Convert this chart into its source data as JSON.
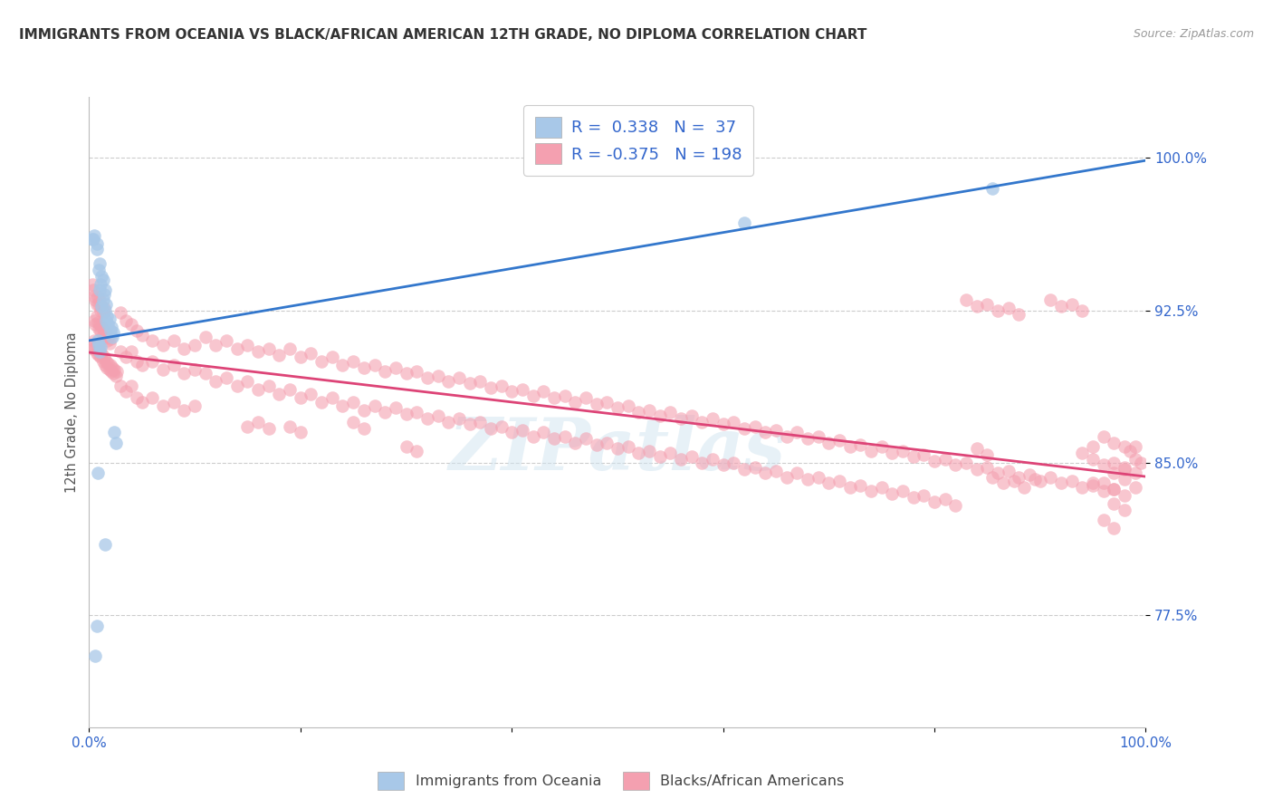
{
  "title": "IMMIGRANTS FROM OCEANIA VS BLACK/AFRICAN AMERICAN 12TH GRADE, NO DIPLOMA CORRELATION CHART",
  "source": "Source: ZipAtlas.com",
  "ylabel": "12th Grade, No Diploma",
  "xlim": [
    0.0,
    1.0
  ],
  "ylim": [
    0.72,
    1.03
  ],
  "yticks": [
    0.775,
    0.85,
    0.925,
    1.0
  ],
  "ytick_labels": [
    "77.5%",
    "85.0%",
    "92.5%",
    "100.0%"
  ],
  "xticks": [
    0.0,
    0.2,
    0.4,
    0.6,
    0.8,
    1.0
  ],
  "xtick_labels": [
    "0.0%",
    "",
    "",
    "",
    "",
    "100.0%"
  ],
  "blue_R": 0.338,
  "blue_N": 37,
  "pink_R": -0.375,
  "pink_N": 198,
  "blue_color": "#a8c8e8",
  "pink_color": "#f4a0b0",
  "blue_line_color": "#3377cc",
  "pink_line_color": "#dd4477",
  "legend_label_blue": "Immigrants from Oceania",
  "legend_label_pink": "Blacks/African Americans",
  "watermark": "ZIPatlas",
  "background_color": "#ffffff",
  "axis_label_color": "#3366cc",
  "title_color": "#333333",
  "blue_points": [
    [
      0.003,
      0.96
    ],
    [
      0.004,
      0.96
    ],
    [
      0.005,
      0.962
    ],
    [
      0.007,
      0.958
    ],
    [
      0.007,
      0.955
    ],
    [
      0.009,
      0.945
    ],
    [
      0.01,
      0.948
    ],
    [
      0.01,
      0.935
    ],
    [
      0.011,
      0.938
    ],
    [
      0.012,
      0.942
    ],
    [
      0.013,
      0.94
    ],
    [
      0.014,
      0.933
    ],
    [
      0.015,
      0.935
    ],
    [
      0.012,
      0.927
    ],
    [
      0.013,
      0.93
    ],
    [
      0.015,
      0.925
    ],
    [
      0.016,
      0.928
    ],
    [
      0.016,
      0.92
    ],
    [
      0.017,
      0.922
    ],
    [
      0.018,
      0.918
    ],
    [
      0.019,
      0.921
    ],
    [
      0.02,
      0.915
    ],
    [
      0.021,
      0.917
    ],
    [
      0.022,
      0.912
    ],
    [
      0.023,
      0.914
    ],
    [
      0.008,
      0.91
    ],
    [
      0.009,
      0.908
    ],
    [
      0.01,
      0.905
    ],
    [
      0.011,
      0.907
    ],
    [
      0.024,
      0.865
    ],
    [
      0.025,
      0.86
    ],
    [
      0.008,
      0.845
    ],
    [
      0.015,
      0.81
    ],
    [
      0.007,
      0.77
    ],
    [
      0.006,
      0.755
    ],
    [
      0.62,
      0.968
    ],
    [
      0.855,
      0.985
    ]
  ],
  "pink_points": [
    [
      0.003,
      0.938
    ],
    [
      0.004,
      0.935
    ],
    [
      0.005,
      0.932
    ],
    [
      0.006,
      0.93
    ],
    [
      0.007,
      0.928
    ],
    [
      0.008,
      0.932
    ],
    [
      0.009,
      0.928
    ],
    [
      0.01,
      0.93
    ],
    [
      0.011,
      0.925
    ],
    [
      0.012,
      0.927
    ],
    [
      0.013,
      0.924
    ],
    [
      0.014,
      0.926
    ],
    [
      0.005,
      0.92
    ],
    [
      0.006,
      0.918
    ],
    [
      0.007,
      0.922
    ],
    [
      0.008,
      0.919
    ],
    [
      0.009,
      0.916
    ],
    [
      0.01,
      0.918
    ],
    [
      0.011,
      0.915
    ],
    [
      0.012,
      0.917
    ],
    [
      0.013,
      0.913
    ],
    [
      0.014,
      0.915
    ],
    [
      0.015,
      0.912
    ],
    [
      0.016,
      0.914
    ],
    [
      0.017,
      0.91
    ],
    [
      0.018,
      0.912
    ],
    [
      0.019,
      0.909
    ],
    [
      0.02,
      0.911
    ],
    [
      0.003,
      0.908
    ],
    [
      0.004,
      0.906
    ],
    [
      0.005,
      0.91
    ],
    [
      0.006,
      0.907
    ],
    [
      0.007,
      0.904
    ],
    [
      0.008,
      0.906
    ],
    [
      0.009,
      0.903
    ],
    [
      0.01,
      0.905
    ],
    [
      0.011,
      0.902
    ],
    [
      0.012,
      0.904
    ],
    [
      0.013,
      0.9
    ],
    [
      0.014,
      0.902
    ],
    [
      0.015,
      0.898
    ],
    [
      0.016,
      0.9
    ],
    [
      0.017,
      0.897
    ],
    [
      0.018,
      0.899
    ],
    [
      0.019,
      0.896
    ],
    [
      0.02,
      0.898
    ],
    [
      0.021,
      0.895
    ],
    [
      0.022,
      0.897
    ],
    [
      0.023,
      0.894
    ],
    [
      0.024,
      0.896
    ],
    [
      0.025,
      0.893
    ],
    [
      0.026,
      0.895
    ],
    [
      0.03,
      0.924
    ],
    [
      0.035,
      0.92
    ],
    [
      0.04,
      0.918
    ],
    [
      0.045,
      0.915
    ],
    [
      0.05,
      0.913
    ],
    [
      0.06,
      0.91
    ],
    [
      0.07,
      0.908
    ],
    [
      0.08,
      0.91
    ],
    [
      0.09,
      0.906
    ],
    [
      0.1,
      0.908
    ],
    [
      0.03,
      0.905
    ],
    [
      0.035,
      0.902
    ],
    [
      0.04,
      0.905
    ],
    [
      0.045,
      0.9
    ],
    [
      0.05,
      0.898
    ],
    [
      0.06,
      0.9
    ],
    [
      0.07,
      0.896
    ],
    [
      0.08,
      0.898
    ],
    [
      0.09,
      0.894
    ],
    [
      0.1,
      0.896
    ],
    [
      0.03,
      0.888
    ],
    [
      0.035,
      0.885
    ],
    [
      0.04,
      0.888
    ],
    [
      0.045,
      0.882
    ],
    [
      0.05,
      0.88
    ],
    [
      0.06,
      0.882
    ],
    [
      0.07,
      0.878
    ],
    [
      0.08,
      0.88
    ],
    [
      0.09,
      0.876
    ],
    [
      0.1,
      0.878
    ],
    [
      0.11,
      0.912
    ],
    [
      0.12,
      0.908
    ],
    [
      0.13,
      0.91
    ],
    [
      0.14,
      0.906
    ],
    [
      0.15,
      0.908
    ],
    [
      0.16,
      0.905
    ],
    [
      0.17,
      0.906
    ],
    [
      0.18,
      0.903
    ],
    [
      0.11,
      0.894
    ],
    [
      0.12,
      0.89
    ],
    [
      0.13,
      0.892
    ],
    [
      0.14,
      0.888
    ],
    [
      0.15,
      0.89
    ],
    [
      0.16,
      0.886
    ],
    [
      0.17,
      0.888
    ],
    [
      0.18,
      0.884
    ],
    [
      0.19,
      0.906
    ],
    [
      0.2,
      0.902
    ],
    [
      0.21,
      0.904
    ],
    [
      0.22,
      0.9
    ],
    [
      0.23,
      0.902
    ],
    [
      0.24,
      0.898
    ],
    [
      0.25,
      0.9
    ],
    [
      0.26,
      0.897
    ],
    [
      0.19,
      0.886
    ],
    [
      0.2,
      0.882
    ],
    [
      0.21,
      0.884
    ],
    [
      0.22,
      0.88
    ],
    [
      0.23,
      0.882
    ],
    [
      0.24,
      0.878
    ],
    [
      0.25,
      0.88
    ],
    [
      0.26,
      0.876
    ],
    [
      0.27,
      0.898
    ],
    [
      0.28,
      0.895
    ],
    [
      0.29,
      0.897
    ],
    [
      0.3,
      0.894
    ],
    [
      0.31,
      0.895
    ],
    [
      0.32,
      0.892
    ],
    [
      0.33,
      0.893
    ],
    [
      0.34,
      0.89
    ],
    [
      0.27,
      0.878
    ],
    [
      0.28,
      0.875
    ],
    [
      0.29,
      0.877
    ],
    [
      0.3,
      0.874
    ],
    [
      0.31,
      0.875
    ],
    [
      0.32,
      0.872
    ],
    [
      0.33,
      0.873
    ],
    [
      0.34,
      0.87
    ],
    [
      0.35,
      0.892
    ],
    [
      0.36,
      0.889
    ],
    [
      0.37,
      0.89
    ],
    [
      0.38,
      0.887
    ],
    [
      0.39,
      0.888
    ],
    [
      0.4,
      0.885
    ],
    [
      0.41,
      0.886
    ],
    [
      0.42,
      0.883
    ],
    [
      0.35,
      0.872
    ],
    [
      0.36,
      0.869
    ],
    [
      0.37,
      0.87
    ],
    [
      0.38,
      0.867
    ],
    [
      0.39,
      0.868
    ],
    [
      0.4,
      0.865
    ],
    [
      0.41,
      0.866
    ],
    [
      0.42,
      0.863
    ],
    [
      0.43,
      0.885
    ],
    [
      0.44,
      0.882
    ],
    [
      0.45,
      0.883
    ],
    [
      0.46,
      0.88
    ],
    [
      0.47,
      0.882
    ],
    [
      0.48,
      0.879
    ],
    [
      0.49,
      0.88
    ],
    [
      0.5,
      0.877
    ],
    [
      0.43,
      0.865
    ],
    [
      0.44,
      0.862
    ],
    [
      0.45,
      0.863
    ],
    [
      0.46,
      0.86
    ],
    [
      0.47,
      0.862
    ],
    [
      0.48,
      0.859
    ],
    [
      0.49,
      0.86
    ],
    [
      0.5,
      0.857
    ],
    [
      0.51,
      0.878
    ],
    [
      0.52,
      0.875
    ],
    [
      0.53,
      0.876
    ],
    [
      0.54,
      0.873
    ],
    [
      0.55,
      0.875
    ],
    [
      0.56,
      0.872
    ],
    [
      0.57,
      0.873
    ],
    [
      0.58,
      0.87
    ],
    [
      0.51,
      0.858
    ],
    [
      0.52,
      0.855
    ],
    [
      0.53,
      0.856
    ],
    [
      0.54,
      0.853
    ],
    [
      0.55,
      0.855
    ],
    [
      0.56,
      0.852
    ],
    [
      0.57,
      0.853
    ],
    [
      0.58,
      0.85
    ],
    [
      0.59,
      0.872
    ],
    [
      0.6,
      0.869
    ],
    [
      0.61,
      0.87
    ],
    [
      0.62,
      0.867
    ],
    [
      0.63,
      0.868
    ],
    [
      0.64,
      0.865
    ],
    [
      0.65,
      0.866
    ],
    [
      0.66,
      0.863
    ],
    [
      0.59,
      0.852
    ],
    [
      0.6,
      0.849
    ],
    [
      0.61,
      0.85
    ],
    [
      0.62,
      0.847
    ],
    [
      0.63,
      0.848
    ],
    [
      0.64,
      0.845
    ],
    [
      0.65,
      0.846
    ],
    [
      0.66,
      0.843
    ],
    [
      0.67,
      0.865
    ],
    [
      0.68,
      0.862
    ],
    [
      0.69,
      0.863
    ],
    [
      0.7,
      0.86
    ],
    [
      0.71,
      0.861
    ],
    [
      0.72,
      0.858
    ],
    [
      0.73,
      0.859
    ],
    [
      0.74,
      0.856
    ],
    [
      0.67,
      0.845
    ],
    [
      0.68,
      0.842
    ],
    [
      0.69,
      0.843
    ],
    [
      0.7,
      0.84
    ],
    [
      0.71,
      0.841
    ],
    [
      0.72,
      0.838
    ],
    [
      0.73,
      0.839
    ],
    [
      0.74,
      0.836
    ],
    [
      0.75,
      0.858
    ],
    [
      0.76,
      0.855
    ],
    [
      0.77,
      0.856
    ],
    [
      0.78,
      0.853
    ],
    [
      0.79,
      0.854
    ],
    [
      0.8,
      0.851
    ],
    [
      0.81,
      0.852
    ],
    [
      0.82,
      0.849
    ],
    [
      0.75,
      0.838
    ],
    [
      0.76,
      0.835
    ],
    [
      0.77,
      0.836
    ],
    [
      0.78,
      0.833
    ],
    [
      0.79,
      0.834
    ],
    [
      0.8,
      0.831
    ],
    [
      0.81,
      0.832
    ],
    [
      0.82,
      0.829
    ],
    [
      0.83,
      0.85
    ],
    [
      0.84,
      0.847
    ],
    [
      0.85,
      0.848
    ],
    [
      0.86,
      0.845
    ],
    [
      0.87,
      0.846
    ],
    [
      0.88,
      0.843
    ],
    [
      0.89,
      0.844
    ],
    [
      0.9,
      0.841
    ],
    [
      0.83,
      0.93
    ],
    [
      0.84,
      0.927
    ],
    [
      0.85,
      0.928
    ],
    [
      0.86,
      0.925
    ],
    [
      0.87,
      0.926
    ],
    [
      0.88,
      0.923
    ],
    [
      0.91,
      0.93
    ],
    [
      0.92,
      0.927
    ],
    [
      0.93,
      0.928
    ],
    [
      0.94,
      0.925
    ],
    [
      0.91,
      0.843
    ],
    [
      0.92,
      0.84
    ],
    [
      0.93,
      0.841
    ],
    [
      0.94,
      0.838
    ],
    [
      0.95,
      0.839
    ],
    [
      0.96,
      0.836
    ],
    [
      0.97,
      0.837
    ],
    [
      0.98,
      0.834
    ],
    [
      0.95,
      0.852
    ],
    [
      0.96,
      0.849
    ],
    [
      0.97,
      0.85
    ],
    [
      0.98,
      0.847
    ],
    [
      0.96,
      0.863
    ],
    [
      0.97,
      0.86
    ],
    [
      0.95,
      0.84
    ],
    [
      0.96,
      0.822
    ],
    [
      0.97,
      0.818
    ],
    [
      0.98,
      0.848
    ],
    [
      0.99,
      0.845
    ],
    [
      0.97,
      0.83
    ],
    [
      0.98,
      0.827
    ],
    [
      0.99,
      0.858
    ],
    [
      0.99,
      0.838
    ],
    [
      0.97,
      0.845
    ],
    [
      0.98,
      0.842
    ],
    [
      0.96,
      0.84
    ],
    [
      0.97,
      0.837
    ],
    [
      0.855,
      0.843
    ],
    [
      0.865,
      0.84
    ],
    [
      0.875,
      0.841
    ],
    [
      0.885,
      0.838
    ],
    [
      0.895,
      0.842
    ],
    [
      0.94,
      0.855
    ],
    [
      0.95,
      0.858
    ],
    [
      0.15,
      0.868
    ],
    [
      0.16,
      0.87
    ],
    [
      0.17,
      0.867
    ],
    [
      0.25,
      0.87
    ],
    [
      0.26,
      0.867
    ],
    [
      0.3,
      0.858
    ],
    [
      0.31,
      0.856
    ],
    [
      0.98,
      0.858
    ],
    [
      0.985,
      0.856
    ],
    [
      0.99,
      0.852
    ],
    [
      0.995,
      0.85
    ],
    [
      0.84,
      0.857
    ],
    [
      0.85,
      0.854
    ],
    [
      0.19,
      0.868
    ],
    [
      0.2,
      0.865
    ]
  ]
}
